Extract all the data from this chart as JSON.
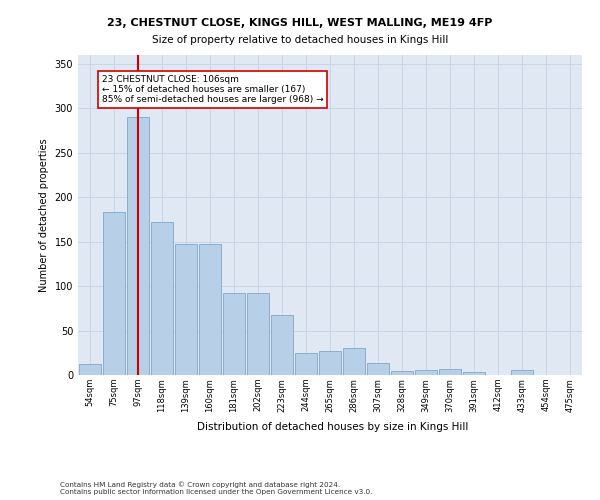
{
  "title1": "23, CHESTNUT CLOSE, KINGS HILL, WEST MALLING, ME19 4FP",
  "title2": "Size of property relative to detached houses in Kings Hill",
  "xlabel": "Distribution of detached houses by size in Kings Hill",
  "ylabel": "Number of detached properties",
  "categories": [
    "54sqm",
    "75sqm",
    "97sqm",
    "118sqm",
    "139sqm",
    "160sqm",
    "181sqm",
    "202sqm",
    "223sqm",
    "244sqm",
    "265sqm",
    "286sqm",
    "307sqm",
    "328sqm",
    "349sqm",
    "370sqm",
    "391sqm",
    "412sqm",
    "433sqm",
    "454sqm",
    "475sqm"
  ],
  "values": [
    12,
    183,
    290,
    172,
    147,
    147,
    92,
    92,
    68,
    25,
    27,
    30,
    13,
    5,
    6,
    7,
    3,
    0,
    6,
    0,
    0
  ],
  "bar_color": "#b8cfe8",
  "bar_edge_color": "#6e9cc4",
  "vline_x_index": 2,
  "vline_color": "#cc0000",
  "annotation_line1": "23 CHESTNUT CLOSE: 106sqm",
  "annotation_line2": "← 15% of detached houses are smaller (167)",
  "annotation_line3": "85% of semi-detached houses are larger (968) →",
  "annotation_box_facecolor": "#ffffff",
  "annotation_box_edgecolor": "#cc0000",
  "grid_color": "#c8d4e8",
  "plot_bg_color": "#e0e8f4",
  "fig_bg_color": "#ffffff",
  "ylim_max": 360,
  "yticks": [
    0,
    50,
    100,
    150,
    200,
    250,
    300,
    350
  ],
  "footer1": "Contains HM Land Registry data © Crown copyright and database right 2024.",
  "footer2": "Contains public sector information licensed under the Open Government Licence v3.0."
}
